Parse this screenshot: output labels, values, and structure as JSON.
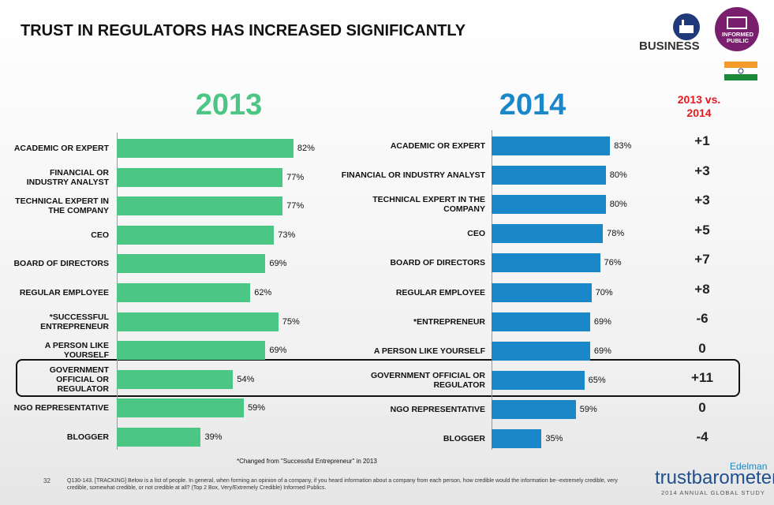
{
  "header": {
    "title": "TRUST IN REGULATORS HAS INCREASED SIGNIFICANTLY",
    "business": "BUSINESS",
    "informed_public": "INFORMED PUBLIC"
  },
  "chart_data": [
    {
      "type": "bar",
      "orientation": "horizontal",
      "title": "2013",
      "color": "#4cc685",
      "categories": [
        "ACADEMIC OR EXPERT",
        "FINANCIAL OR INDUSTRY ANALYST",
        "TECHNICAL EXPERT IN THE COMPANY",
        "CEO",
        "BOARD OF DIRECTORS",
        "REGULAR EMPLOYEE",
        "*SUCCESSFUL ENTREPRENEUR",
        "A PERSON LIKE YOURSELF",
        "GOVERNMENT OFFICIAL OR REGULATOR",
        "NGO REPRESENTATIVE",
        "BLOGGER"
      ],
      "values": [
        82,
        77,
        77,
        73,
        69,
        62,
        75,
        69,
        54,
        59,
        39
      ],
      "value_labels": [
        "82%",
        "77%",
        "77%",
        "73%",
        "69%",
        "62%",
        "75%",
        "69%",
        "54%",
        "59%",
        "39%"
      ]
    },
    {
      "type": "bar",
      "orientation": "horizontal",
      "title": "2014",
      "color": "#1a87c9",
      "categories": [
        "ACADEMIC OR EXPERT",
        "FINANCIAL OR INDUSTRY ANALYST",
        "TECHNICAL EXPERT IN THE COMPANY",
        "CEO",
        "BOARD OF DIRECTORS",
        "REGULAR EMPLOYEE",
        "*ENTREPRENEUR",
        "A PERSON LIKE YOURSELF",
        "GOVERNMENT OFFICIAL OR REGULATOR",
        "NGO REPRESENTATIVE",
        "BLOGGER"
      ],
      "values": [
        83,
        80,
        80,
        78,
        76,
        70,
        69,
        69,
        65,
        59,
        35
      ],
      "value_labels": [
        "83%",
        "80%",
        "80%",
        "78%",
        "76%",
        "70%",
        "69%",
        "69%",
        "65%",
        "59%",
        "35%"
      ]
    }
  ],
  "comparison": {
    "title": "2013 vs. 2014",
    "values": [
      1,
      3,
      3,
      5,
      7,
      8,
      -6,
      0,
      11,
      0,
      -4
    ],
    "value_labels": [
      "+1",
      "+3",
      "+3",
      "+5",
      "+7",
      "+8",
      "-6",
      "0",
      "+11",
      "0",
      "-4"
    ]
  },
  "note": "*Changed from \"Successful Entrepreneur\" in 2013",
  "footnote": {
    "page": "32",
    "text": "Q130-143. [TRACKING] Below is a list of people. In general, when forming an opinion of a company, if you heard information about a company from each person, how credible would the information be--extremely credible, very credible, somewhat credible, or not credible at all? (Top 2 Box, Very/Extremely Credible) Informed Publics."
  },
  "brand": {
    "name": "Edelman",
    "product": "trustbarometer",
    "study": "2014 ANNUAL GLOBAL STUDY"
  }
}
